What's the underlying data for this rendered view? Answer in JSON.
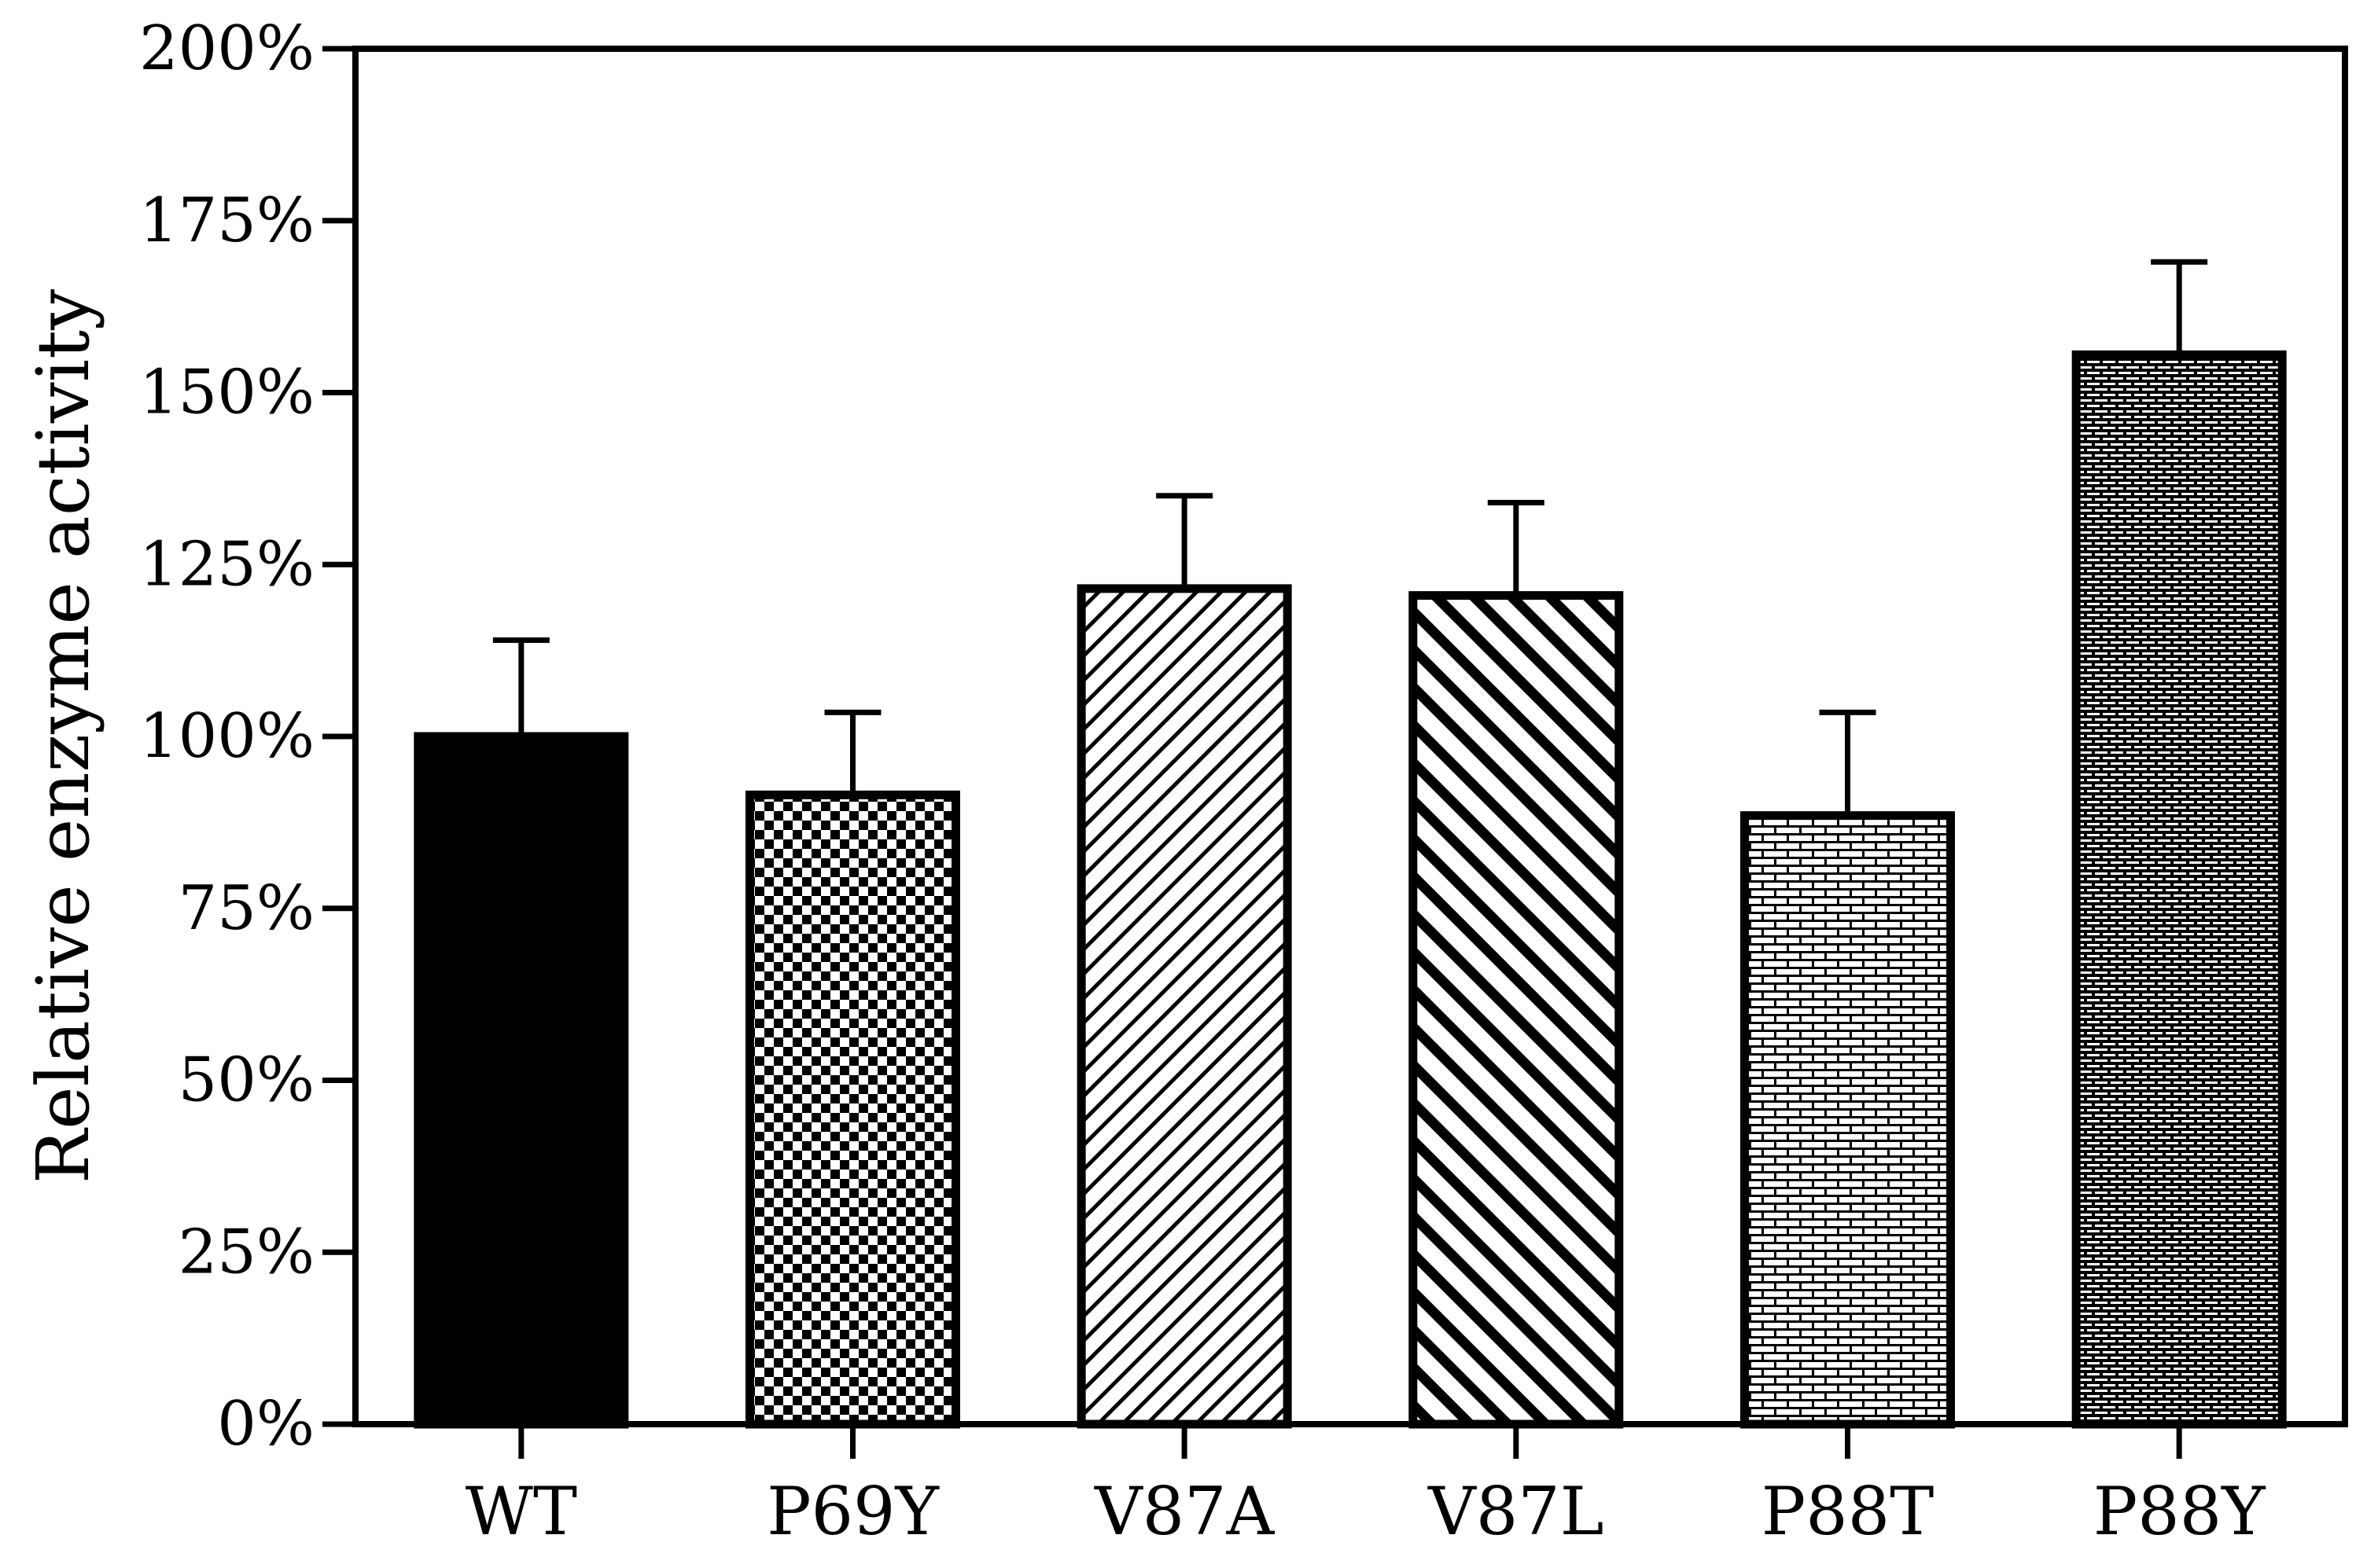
{
  "chart_data": {
    "type": "bar",
    "title": "",
    "xlabel": "",
    "ylabel": "Relative enzyme activity",
    "y_unit": "%",
    "ylim": [
      0,
      200
    ],
    "yticks": [
      0,
      25,
      50,
      75,
      100,
      125,
      150,
      175,
      200
    ],
    "ytick_labels": [
      "0%",
      "25%",
      "50%",
      "75%",
      "100%",
      "125%",
      "150%",
      "175%",
      "200%"
    ],
    "categories": [
      "WT",
      "P69Y",
      "V87A",
      "V87L",
      "P88T",
      "P88Y"
    ],
    "values": [
      100,
      91.5,
      121.5,
      120.5,
      88.5,
      155.5
    ],
    "error_upper": [
      14,
      12,
      13.5,
      13.5,
      15,
      13.5
    ],
    "fill_patterns": [
      "solid",
      "checkerboard",
      "diagonal-right-fine",
      "diagonal-left-bold",
      "brick-light",
      "brick-dense"
    ],
    "grid": false,
    "legend": "none",
    "colors": {
      "bar_stroke": "#000000",
      "fill": "#000000",
      "background": "#ffffff"
    }
  }
}
